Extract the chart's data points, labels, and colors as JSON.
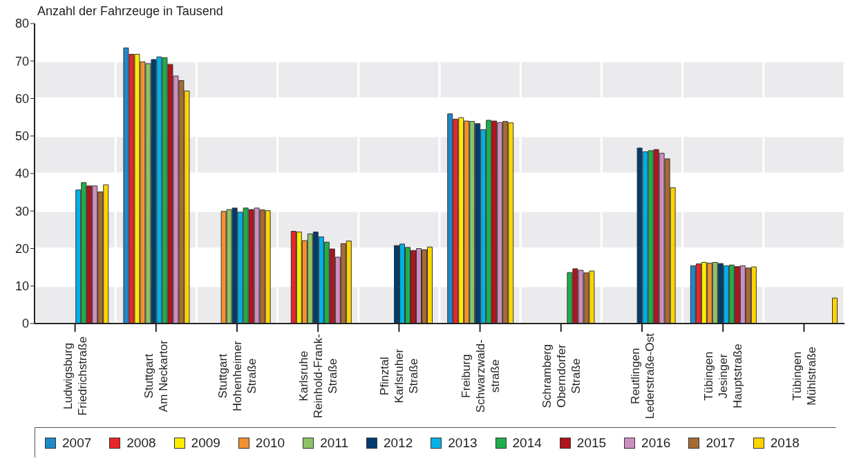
{
  "chart_data": {
    "type": "bar",
    "ylabel": "Anzahl der Fahrzeuge in Tausend",
    "categories": [
      "Ludwigsburg\nFriedrichstraße",
      "Stuttgart\nAm Neckartor",
      "Stuttgart\nHohenheimer\nStraße",
      "Karlsruhe\nReinhold-Frank-\nStraße",
      "Pfinztal\nKarlsruher\nStraße",
      "Freiburg\nSchwarzwald-\nstraße",
      "Schramberg\nOberndorfer\nStraße",
      "Reutlingen\nLederstraße-Ost",
      "Tübingen\nJesinger\nHauptstraße",
      "Tübingen\nMühlstraße"
    ],
    "series": [
      {
        "name": "2007",
        "color": "#1f88c9",
        "values": [
          null,
          73.5,
          null,
          null,
          null,
          55.9,
          null,
          null,
          15.4,
          null
        ]
      },
      {
        "name": "2008",
        "color": "#e8262a",
        "values": [
          null,
          71.8,
          null,
          24.6,
          null,
          54.5,
          null,
          null,
          15.9,
          null
        ]
      },
      {
        "name": "2009",
        "color": "#ffec00",
        "values": [
          null,
          71.8,
          null,
          24.4,
          null,
          54.9,
          null,
          null,
          16.3,
          null
        ]
      },
      {
        "name": "2010",
        "color": "#f39130",
        "values": [
          null,
          69.8,
          29.9,
          22.1,
          null,
          54.0,
          null,
          null,
          16.1,
          null
        ]
      },
      {
        "name": "2011",
        "color": "#8cc465",
        "values": [
          null,
          69.3,
          30.4,
          23.9,
          null,
          53.9,
          null,
          null,
          16.3,
          null
        ]
      },
      {
        "name": "2012",
        "color": "#003d6e",
        "values": [
          null,
          70.4,
          30.8,
          24.4,
          20.8,
          53.3,
          null,
          46.8,
          16.0,
          null
        ]
      },
      {
        "name": "2013",
        "color": "#00b1e8",
        "values": [
          35.6,
          71.1,
          29.7,
          23.1,
          21.2,
          51.7,
          null,
          45.8,
          15.4,
          null
        ]
      },
      {
        "name": "2014",
        "color": "#22ad4b",
        "values": [
          37.6,
          70.9,
          30.8,
          21.7,
          20.3,
          54.2,
          13.6,
          46.1,
          15.6,
          null
        ]
      },
      {
        "name": "2015",
        "color": "#b0141c",
        "values": [
          36.7,
          69.1,
          30.4,
          19.9,
          19.5,
          54.0,
          14.6,
          46.4,
          15.2,
          null
        ]
      },
      {
        "name": "2016",
        "color": "#cc8fc0",
        "values": [
          36.7,
          66.0,
          30.8,
          17.7,
          20.0,
          53.6,
          14.2,
          45.4,
          15.4,
          null
        ]
      },
      {
        "name": "2017",
        "color": "#a86a34",
        "values": [
          35.1,
          64.8,
          30.3,
          21.3,
          19.7,
          53.9,
          13.5,
          43.9,
          14.8,
          null
        ]
      },
      {
        "name": "2018",
        "color": "#ffd500",
        "values": [
          37.0,
          62.0,
          30.1,
          22.0,
          20.4,
          53.5,
          14.0,
          36.2,
          15.1,
          6.8
        ]
      }
    ],
    "ylim": [
      0,
      80
    ],
    "yticks": [
      0,
      10,
      20,
      30,
      40,
      50,
      60,
      70,
      80
    ],
    "grid": true,
    "legend": "bottom"
  }
}
